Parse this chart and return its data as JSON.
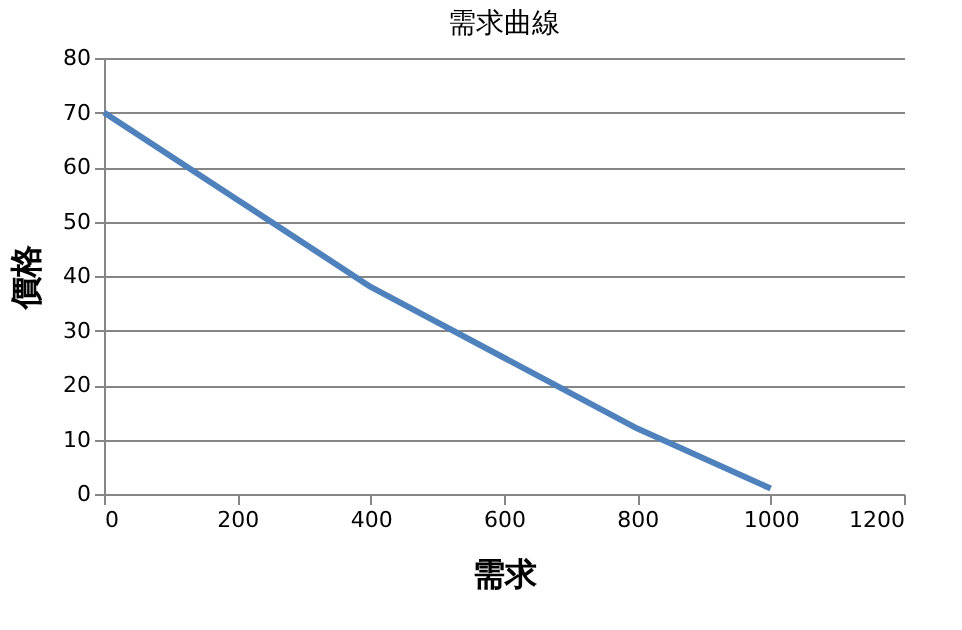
{
  "chart_data": {
    "type": "line",
    "title": "需求曲線",
    "xlabel": "需求",
    "ylabel": "價格",
    "x": [
      0,
      200,
      400,
      600,
      800,
      1000
    ],
    "series": [
      {
        "color": "#4f81bd",
        "values": [
          70,
          54,
          38,
          25,
          12,
          1
        ]
      }
    ],
    "xlim": [
      0,
      1200
    ],
    "xticks": [
      0,
      200,
      400,
      600,
      800,
      1000,
      1200
    ],
    "ylim": [
      0,
      80
    ],
    "yticks": [
      0,
      10,
      20,
      30,
      40,
      50,
      60,
      70,
      80
    ],
    "grid": "y",
    "marker": "none",
    "line_style": "solid"
  }
}
